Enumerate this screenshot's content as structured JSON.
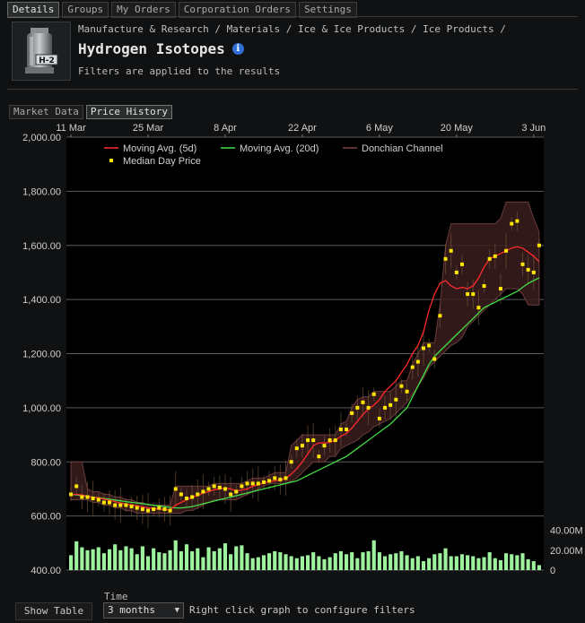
{
  "top_tabs": [
    "Details",
    "Groups",
    "My Orders",
    "Corporation Orders",
    "Settings"
  ],
  "item": {
    "icon_label": "H-2",
    "breadcrumb": "Manufacture & Research / Materials / Ice & Ice Products / Ice Products /",
    "title": "Hydrogen Isotopes",
    "filters_note": "Filters are applied to the results"
  },
  "sub_tabs": [
    "Market Data",
    "Price History"
  ],
  "bottom": {
    "show_table": "Show Table",
    "time_label": "Time",
    "time_value": "3 months",
    "hint": "Right click graph to configure filters"
  },
  "chart_data": {
    "type": "line",
    "x_ticks": [
      "11 Mar",
      "25 Mar",
      "8 Apr",
      "22 Apr",
      "6 May",
      "20 May",
      "3 Jun"
    ],
    "y_ticks": [
      "2,000.00",
      "1,800.00",
      "1,600.00",
      "1,400.00",
      "1,200.00",
      "1,000.00",
      "800.00",
      "600.00",
      "400.00"
    ],
    "ylim": [
      400,
      2000
    ],
    "volume_ticks": [
      "40.00M",
      "20.00M",
      "0"
    ],
    "volume_lim": [
      0,
      60000000
    ],
    "legend": [
      "Moving Avg. (5d)",
      "Moving Avg. (20d)",
      "Donchian Channel",
      "Median Day Price"
    ],
    "colors": {
      "ma5": "#ff2a2a",
      "ma20": "#44dd44",
      "donchian_fill": "#3a1d1d",
      "donchian_line": "#6a3b3b",
      "median": "#ffe600",
      "volume": "#9ef29e"
    },
    "median": [
      680,
      710,
      670,
      670,
      665,
      660,
      650,
      650,
      640,
      640,
      640,
      635,
      630,
      625,
      620,
      625,
      630,
      625,
      620,
      700,
      680,
      665,
      670,
      680,
      690,
      700,
      710,
      705,
      700,
      680,
      690,
      710,
      720,
      720,
      720,
      725,
      730,
      740,
      735,
      740,
      800,
      850,
      860,
      880,
      880,
      820,
      860,
      880,
      880,
      920,
      920,
      980,
      1000,
      1020,
      1000,
      1050,
      960,
      1000,
      1010,
      1030,
      1080,
      1060,
      1150,
      1170,
      1220,
      1230,
      1180,
      1340,
      1550,
      1580,
      1500,
      1530,
      1420,
      1420,
      1370,
      1450,
      1550,
      1560,
      1440,
      1580,
      1680,
      1690,
      1530,
      1510,
      1500,
      1600
    ],
    "ma5": [
      680,
      680,
      678,
      673,
      669,
      667,
      662,
      658,
      653,
      648,
      644,
      641,
      638,
      634,
      630,
      628,
      625,
      624,
      623,
      640,
      650,
      660,
      670,
      675,
      685,
      690,
      697,
      700,
      703,
      700,
      693,
      696,
      700,
      710,
      715,
      722,
      727,
      730,
      733,
      738,
      755,
      775,
      800,
      830,
      860,
      870,
      870,
      872,
      880,
      895,
      905,
      925,
      950,
      975,
      995,
      1010,
      1030,
      1060,
      1080,
      1100,
      1130,
      1160,
      1200,
      1230,
      1280,
      1360,
      1420,
      1460,
      1470,
      1450,
      1440,
      1445,
      1440,
      1450,
      1480,
      1520,
      1550,
      1560,
      1570,
      1580,
      1590,
      1595,
      1590,
      1575,
      1560,
      1540
    ],
    "ma20": [
      680,
      678,
      675,
      673,
      670,
      668,
      665,
      662,
      659,
      656,
      653,
      650,
      648,
      645,
      643,
      640,
      638,
      635,
      632,
      630,
      630,
      632,
      635,
      640,
      645,
      650,
      655,
      660,
      665,
      670,
      675,
      680,
      685,
      690,
      695,
      700,
      705,
      710,
      715,
      720,
      725,
      730,
      740,
      750,
      760,
      770,
      780,
      790,
      800,
      810,
      820,
      835,
      850,
      865,
      880,
      895,
      910,
      925,
      940,
      960,
      980,
      1000,
      1040,
      1080,
      1120,
      1160,
      1190,
      1210,
      1230,
      1250,
      1270,
      1290,
      1310,
      1330,
      1350,
      1370,
      1380,
      1390,
      1400,
      1410,
      1420,
      1430,
      1445,
      1460,
      1470,
      1480
    ],
    "donchian_high": [
      800,
      800,
      800,
      700,
      690,
      690,
      680,
      680,
      670,
      670,
      660,
      660,
      650,
      650,
      640,
      640,
      640,
      640,
      640,
      710,
      710,
      710,
      710,
      710,
      710,
      710,
      720,
      720,
      720,
      720,
      720,
      720,
      730,
      740,
      740,
      740,
      750,
      760,
      760,
      760,
      860,
      880,
      900,
      900,
      900,
      900,
      900,
      900,
      900,
      940,
      950,
      1000,
      1030,
      1040,
      1040,
      1060,
      1060,
      1060,
      1060,
      1080,
      1100,
      1100,
      1160,
      1200,
      1240,
      1240,
      1240,
      1380,
      1600,
      1680,
      1680,
      1680,
      1680,
      1680,
      1680,
      1680,
      1680,
      1680,
      1700,
      1760,
      1760,
      1760,
      1760,
      1760,
      1700,
      1650
    ],
    "donchian_low": [
      660,
      660,
      660,
      660,
      650,
      650,
      640,
      640,
      630,
      630,
      620,
      620,
      610,
      610,
      610,
      610,
      610,
      610,
      610,
      610,
      610,
      620,
      620,
      630,
      640,
      650,
      660,
      660,
      660,
      660,
      660,
      670,
      680,
      690,
      700,
      710,
      720,
      720,
      720,
      720,
      730,
      740,
      760,
      780,
      800,
      800,
      800,
      820,
      820,
      850,
      860,
      870,
      880,
      900,
      910,
      930,
      940,
      950,
      960,
      980,
      1000,
      1020,
      1050,
      1080,
      1110,
      1150,
      1170,
      1190,
      1210,
      1230,
      1240,
      1260,
      1300,
      1320,
      1340,
      1360,
      1380,
      1400,
      1420,
      1440,
      1440,
      1440,
      1420,
      1380,
      1380,
      1380
    ],
    "volume": [
      15000000,
      29000000,
      23000000,
      20000000,
      21000000,
      23000000,
      17000000,
      21000000,
      26000000,
      20000000,
      24000000,
      22000000,
      16000000,
      24000000,
      14000000,
      22000000,
      18000000,
      17000000,
      20000000,
      30000000,
      19000000,
      26000000,
      19000000,
      22000000,
      13000000,
      23000000,
      19000000,
      22000000,
      27000000,
      16000000,
      24000000,
      25000000,
      17000000,
      12000000,
      13000000,
      15000000,
      17000000,
      19000000,
      18000000,
      16000000,
      14000000,
      12000000,
      14000000,
      15000000,
      18000000,
      14000000,
      11000000,
      13000000,
      17000000,
      19000000,
      16000000,
      18000000,
      12000000,
      18000000,
      19000000,
      30000000,
      18000000,
      14000000,
      16000000,
      17000000,
      19000000,
      15000000,
      12000000,
      14000000,
      9000000,
      12000000,
      16000000,
      17000000,
      22000000,
      14000000,
      14000000,
      16000000,
      15000000,
      14000000,
      12000000,
      13000000,
      18000000,
      12000000,
      10000000,
      17000000,
      16000000,
      15000000,
      17000000,
      11000000,
      9000000,
      5000000
    ]
  }
}
